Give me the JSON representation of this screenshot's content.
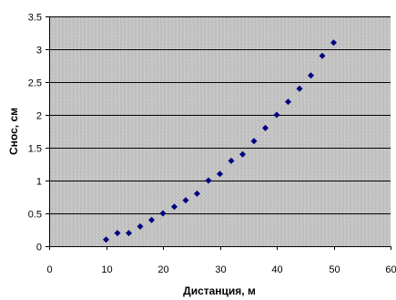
{
  "chart_data": {
    "type": "scatter",
    "title": "",
    "xlabel": "Дистанция, м",
    "ylabel": "Снос, см",
    "xlim": [
      0,
      60
    ],
    "ylim": [
      0,
      3.5
    ],
    "x_ticks": [
      0,
      10,
      20,
      30,
      40,
      50,
      60
    ],
    "y_ticks": [
      0,
      0.5,
      1,
      1.5,
      2,
      2.5,
      3,
      3.5
    ],
    "x_tick_labels": [
      "0",
      "10",
      "20",
      "30",
      "40",
      "50",
      "60"
    ],
    "y_tick_labels": [
      "0",
      "0.5",
      "1",
      "1.5",
      "2",
      "2.5",
      "3",
      "3.5"
    ],
    "grid": "horizontal",
    "legend": "none",
    "colors": {
      "plot_background": "#c0c0c0",
      "gridline": "#000000",
      "marker": "#000080",
      "axis": "#000000"
    },
    "series": [
      {
        "marker": "diamond",
        "x": [
          10,
          12,
          14,
          16,
          18,
          20,
          22,
          24,
          26,
          28,
          30,
          32,
          34,
          36,
          38,
          40,
          42,
          44,
          46,
          48,
          50
        ],
        "y": [
          0.1,
          0.2,
          0.2,
          0.3,
          0.4,
          0.5,
          0.6,
          0.7,
          0.8,
          1.0,
          1.1,
          1.3,
          1.4,
          1.6,
          1.8,
          2.0,
          2.2,
          2.4,
          2.6,
          2.9,
          3.1
        ]
      }
    ]
  }
}
